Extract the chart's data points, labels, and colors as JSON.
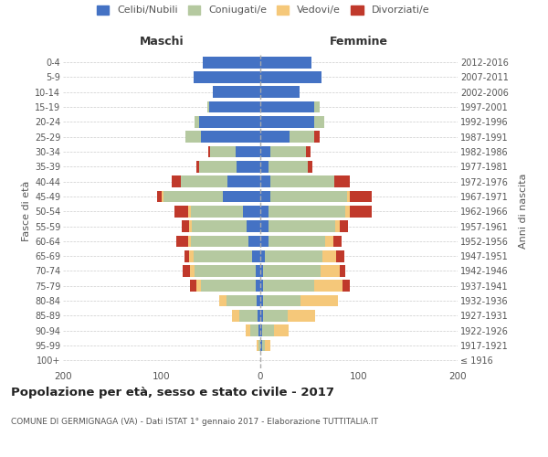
{
  "age_groups": [
    "100+",
    "95-99",
    "90-94",
    "85-89",
    "80-84",
    "75-79",
    "70-74",
    "65-69",
    "60-64",
    "55-59",
    "50-54",
    "45-49",
    "40-44",
    "35-39",
    "30-34",
    "25-29",
    "20-24",
    "15-19",
    "10-14",
    "5-9",
    "0-4"
  ],
  "birth_years": [
    "≤ 1916",
    "1917-1921",
    "1922-1926",
    "1927-1931",
    "1932-1936",
    "1937-1941",
    "1942-1946",
    "1947-1951",
    "1952-1956",
    "1957-1961",
    "1962-1966",
    "1967-1971",
    "1972-1976",
    "1977-1981",
    "1982-1986",
    "1987-1991",
    "1992-1996",
    "1997-2001",
    "2002-2006",
    "2007-2011",
    "2012-2016"
  ],
  "colors": {
    "celibi": "#4472c4",
    "coniugati": "#b5c9a0",
    "vedovi": "#f5c87a",
    "divorziati": "#c0392b"
  },
  "maschi": {
    "celibi": [
      0,
      0,
      2,
      3,
      4,
      5,
      5,
      8,
      12,
      14,
      18,
      38,
      33,
      24,
      25,
      60,
      62,
      52,
      48,
      68,
      58
    ],
    "coniugati": [
      0,
      2,
      8,
      18,
      30,
      55,
      62,
      60,
      58,
      55,
      52,
      60,
      48,
      38,
      26,
      16,
      5,
      2,
      0,
      0,
      0
    ],
    "vedovi": [
      0,
      2,
      5,
      8,
      8,
      5,
      4,
      4,
      3,
      3,
      3,
      2,
      0,
      0,
      0,
      0,
      0,
      0,
      0,
      0,
      0
    ],
    "divorziati": [
      0,
      0,
      0,
      0,
      0,
      6,
      8,
      5,
      12,
      8,
      14,
      5,
      9,
      3,
      2,
      0,
      0,
      0,
      0,
      0,
      0
    ]
  },
  "femmine": {
    "celibi": [
      0,
      2,
      2,
      3,
      3,
      3,
      3,
      5,
      8,
      8,
      8,
      10,
      10,
      8,
      10,
      30,
      55,
      55,
      40,
      62,
      52
    ],
    "coniugati": [
      0,
      3,
      12,
      25,
      38,
      52,
      58,
      58,
      58,
      68,
      78,
      78,
      65,
      40,
      36,
      25,
      10,
      5,
      0,
      0,
      0
    ],
    "vedovi": [
      0,
      5,
      15,
      28,
      38,
      28,
      20,
      14,
      8,
      5,
      5,
      3,
      0,
      0,
      0,
      0,
      0,
      0,
      0,
      0,
      0
    ],
    "divorziati": [
      0,
      0,
      0,
      0,
      0,
      8,
      5,
      8,
      8,
      8,
      22,
      22,
      16,
      5,
      5,
      5,
      0,
      0,
      0,
      0,
      0
    ]
  },
  "title": "Popolazione per età, sesso e stato civile - 2017",
  "subtitle": "COMUNE DI GERMIGNAGA (VA) - Dati ISTAT 1° gennaio 2017 - Elaborazione TUTTITALIA.IT",
  "xlabel_left": "Maschi",
  "xlabel_right": "Femmine",
  "ylabel_left": "Fasce di età",
  "ylabel_right": "Anni di nascita",
  "xlim": [
    -200,
    200
  ],
  "legend_labels": [
    "Celibi/Nubili",
    "Coniugati/e",
    "Vedovi/e",
    "Divorziati/e"
  ],
  "bg_color": "#ffffff",
  "grid_color": "#cccccc"
}
